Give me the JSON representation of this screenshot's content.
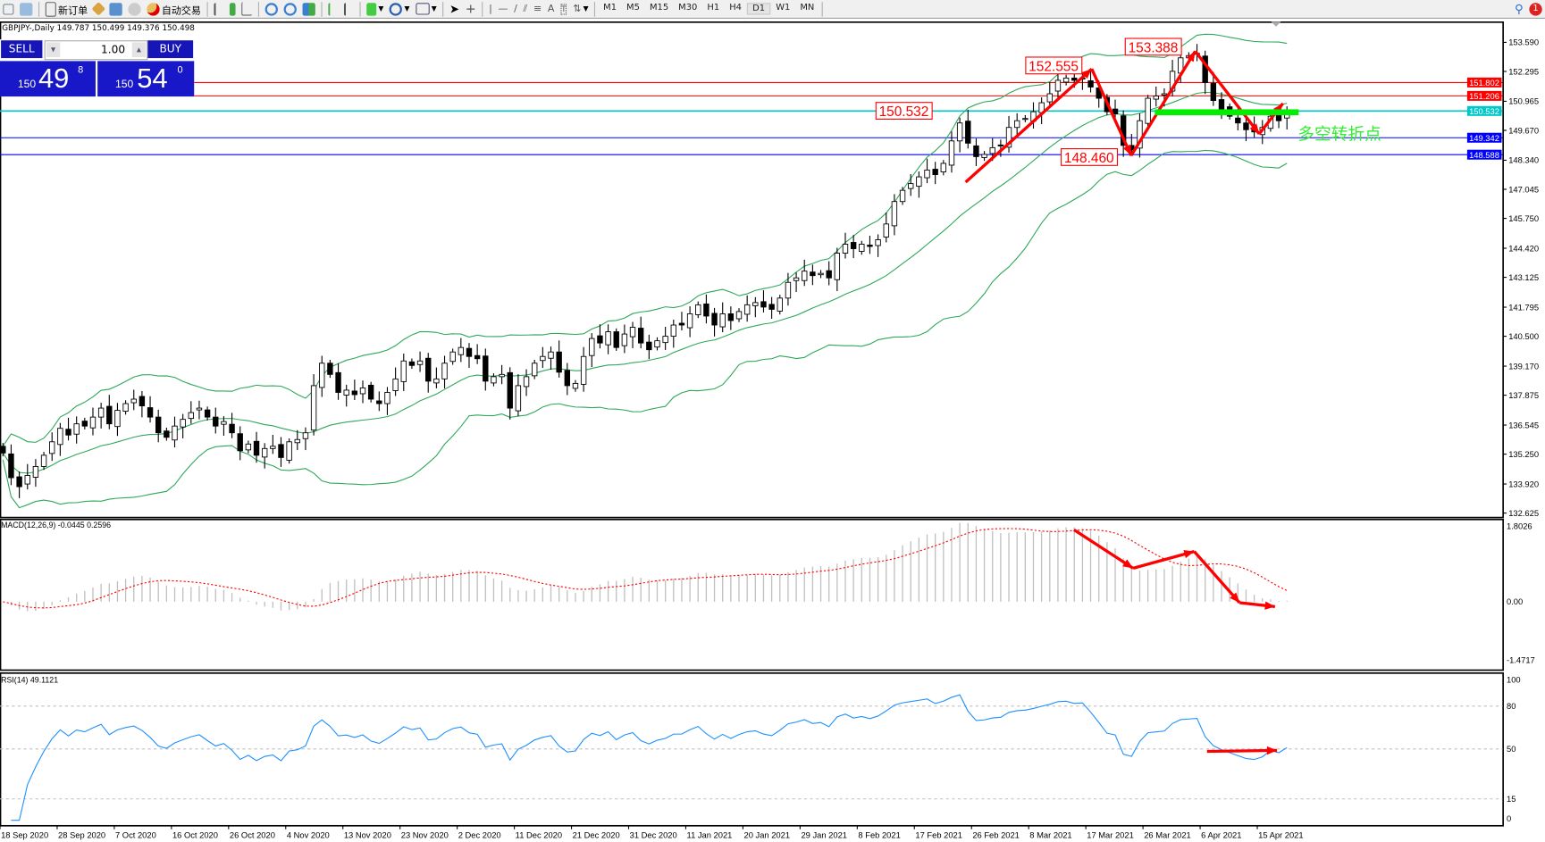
{
  "toolbar": {
    "new_order": "新订单",
    "auto_trade": "自动交易",
    "timeframes": [
      "M1",
      "M5",
      "M15",
      "M30",
      "H1",
      "H4",
      "D1",
      "W1",
      "MN"
    ],
    "active_timeframe": "D1",
    "notification_count": "1"
  },
  "chart_header": "GBPJPY-,Daily  149.787 150.499 149.376 150.498",
  "trade_panel": {
    "sell": "SELL",
    "buy": "BUY",
    "lot": "1.00",
    "bid_small": "150",
    "bid_big": "49",
    "bid_sup": "8",
    "ask_small": "150",
    "ask_big": "54",
    "ask_sup": "0"
  },
  "macd_label": "MACD(12,26,9) -0.0445 0.2596",
  "rsi_label": "RSI(14) 49.1121",
  "annotation_text": "多空转折点",
  "colors": {
    "bull": "#ffffff",
    "bear": "#000000",
    "bands": "#2ea85a",
    "rsi": "#1e90ff",
    "signal": "#ff0000",
    "hist": "#c0c0c0",
    "annot": "#ff0000",
    "green_bar": "#00ee00"
  },
  "chart_data": {
    "type": "candlestick",
    "symbol": "GBPJPY",
    "timeframe": "Daily",
    "price_axis": {
      "min": 132.625,
      "max": 153.59,
      "ticks": [
        "153.590",
        "152.295",
        "150.965",
        "149.670",
        "148.340",
        "147.045",
        "145.750",
        "144.420",
        "143.125",
        "141.795",
        "140.500",
        "139.170",
        "137.875",
        "136.545",
        "135.250",
        "133.920",
        "132.625"
      ]
    },
    "date_labels": [
      "18 Sep 2020",
      "28 Sep 2020",
      "7 Oct 2020",
      "16 Oct 2020",
      "26 Oct 2020",
      "4 Nov 2020",
      "13 Nov 2020",
      "23 Nov 2020",
      "2 Dec 2020",
      "11 Dec 2020",
      "21 Dec 2020",
      "31 Dec 2020",
      "11 Jan 2021",
      "20 Jan 2021",
      "29 Jan 2021",
      "8 Feb 2021",
      "17 Feb 2021",
      "26 Feb 2021",
      "8 Mar 2021",
      "17 Mar 2021",
      "26 Mar 2021",
      "6 Apr 2021",
      "15 Apr 2021"
    ],
    "closes": [
      135.3,
      134.2,
      133.8,
      134.3,
      134.7,
      135.2,
      135.8,
      136.4,
      136.1,
      136.6,
      136.5,
      136.9,
      137.3,
      136.6,
      137.2,
      137.5,
      137.7,
      137.4,
      136.9,
      136.2,
      136.0,
      136.5,
      136.8,
      137.1,
      137.3,
      136.9,
      136.5,
      136.7,
      136.2,
      135.4,
      135.7,
      135.2,
      135.5,
      135.6,
      135.1,
      135.8,
      135.9,
      136.2,
      138.3,
      139.3,
      138.8,
      138.0,
      138.1,
      137.9,
      138.2,
      137.7,
      137.5,
      138.0,
      138.6,
      139.4,
      139.2,
      139.4,
      138.5,
      138.6,
      139.3,
      139.8,
      140.0,
      139.6,
      139.5,
      138.5,
      138.7,
      138.8,
      137.3,
      138.3,
      138.7,
      139.3,
      139.6,
      139.8,
      138.9,
      138.3,
      138.4,
      139.6,
      140.4,
      140.2,
      140.7,
      140.0,
      140.6,
      140.9,
      140.2,
      139.9,
      140.3,
      140.5,
      141.0,
      141.0,
      141.5,
      141.9,
      141.4,
      141.0,
      141.5,
      141.2,
      141.6,
      141.9,
      142.0,
      141.8,
      141.7,
      142.2,
      142.9,
      143.1,
      143.4,
      143.2,
      143.3,
      143.1,
      144.2,
      144.6,
      144.4,
      144.6,
      144.5,
      144.8,
      145.5,
      146.5,
      147.0,
      147.3,
      147.6,
      147.9,
      147.7,
      148.2,
      149.2,
      150.0,
      149.1,
      148.5,
      148.6,
      148.9,
      149.0,
      149.8,
      150.1,
      150.2,
      150.5,
      150.9,
      151.3,
      151.9,
      152.0,
      151.9,
      152.0,
      151.6,
      151.1,
      150.5,
      150.4,
      149.0,
      148.8,
      150.1,
      151.1,
      151.2,
      151.3,
      152.3,
      152.9,
      153.0,
      153.1,
      151.8,
      151.0,
      150.6,
      150.3,
      150.0,
      149.7,
      149.6,
      149.8,
      150.3,
      150.1,
      150.5
    ],
    "horizontal_levels": [
      {
        "price": "151.802",
        "color": "#ff0000"
      },
      {
        "price": "151.206",
        "color": "#ff0000"
      },
      {
        "price": "150.532",
        "color": "#00c8c8"
      },
      {
        "price": "149.342",
        "color": "#0000ff"
      },
      {
        "price": "148.588",
        "color": "#0000ff"
      }
    ],
    "price_callouts": [
      "152.555",
      "153.388",
      "150.532",
      "148.460"
    ],
    "indicators": {
      "bollinger": {
        "period": 20,
        "deviation": 2
      },
      "macd": {
        "fast": 12,
        "slow": 26,
        "signal": 9,
        "axis_ticks": [
          "1.8026",
          "0.00",
          "-1.4717"
        ],
        "min": -1.4717,
        "max": 1.8026
      },
      "rsi": {
        "period": 14,
        "axis_ticks": [
          "100",
          "80",
          "50",
          "15",
          "0"
        ],
        "levels": [
          80,
          50,
          15
        ]
      }
    }
  }
}
